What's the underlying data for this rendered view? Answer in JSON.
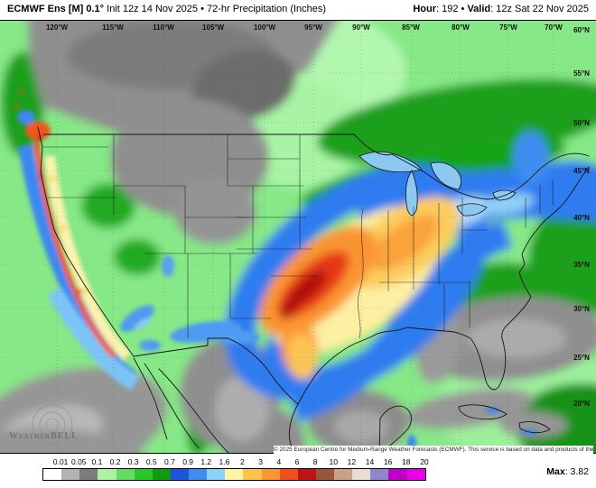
{
  "header": {
    "model_title_bold": "ECMWF Ens [M] 0.1°",
    "model_title_rest": " Init 12z 14 Nov 2025 • 72-hr Precipitation (Inches)",
    "hour_label": "Hour",
    "hour_value": ": 192 ",
    "bullet": "•",
    "valid_label": " Valid",
    "valid_value": ": 12z Sat 22 Nov 2025"
  },
  "map": {
    "lon_labels": [
      "120°W",
      "115°W",
      "110°W",
      "105°W",
      "100°W",
      "95°W",
      "90°W",
      "85°W",
      "80°W",
      "75°W",
      "70°W"
    ],
    "lat_labels": [
      "60°N",
      "55°N",
      "50°N",
      "45°N",
      "40°N",
      "35°N",
      "30°N",
      "25°N",
      "20°N"
    ],
    "watermark": "WeatherBELL",
    "copyright": "© 2025 European Centre for Medium-Range Weather Forecasts (ECMWF). This service is based on data and products of the ECMWF."
  },
  "legend": {
    "values": [
      "0.01",
      "0.05",
      "0.1",
      "0.2",
      "0.3",
      "0.5",
      "0.7",
      "0.9",
      "1.2",
      "1.6",
      "2",
      "3",
      "4",
      "6",
      "8",
      "10",
      "12",
      "14",
      "16",
      "18",
      "20"
    ],
    "colors": [
      "#ffffff",
      "#b2b2b2",
      "#7d7d7d",
      "#aef0a4",
      "#64dc64",
      "#28c828",
      "#0f9b0f",
      "#1c55dd",
      "#3e8ef0",
      "#8cd2f8",
      "#fdf5a6",
      "#fcc44c",
      "#fb9632",
      "#ef4f1a",
      "#c01318",
      "#96573d",
      "#c9a183",
      "#e9ddd3",
      "#9186cc",
      "#bf00c8",
      "#e800e8"
    ],
    "max_label": "Max",
    "max_value": ": 3.82"
  }
}
